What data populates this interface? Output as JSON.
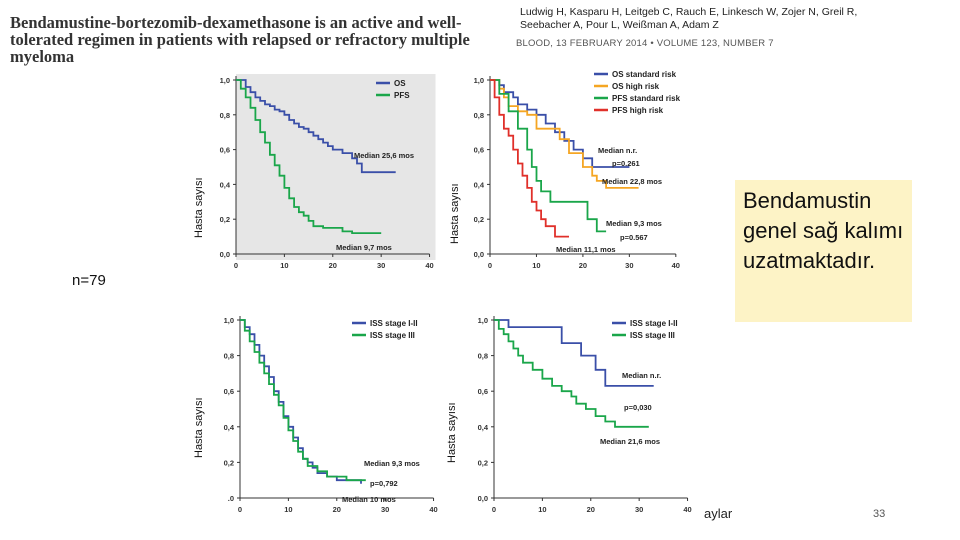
{
  "header": {
    "title": "Bendamustine-bortezomib-dexamethasone is an active and well-tolerated regimen in patients with relapsed or refractory multiple myeloma",
    "authors": "Ludwig H, Kasparu H, Leitgeb C, Rauch E, Linkesch W, Zojer N, Greil R, Seebacher A, Pour L, Weißman A, Adam Z",
    "journal": "BLOOD, 13 FEBRUARY 2014 • VOLUME 123, NUMBER 7"
  },
  "note": "Bendamustin genel sağ kalımı uzatmaktadır.",
  "n_label": "n=79",
  "x_unit_label": "aylar",
  "page_number": "33",
  "y_axis_label": "Hasta sayısı",
  "colors": {
    "blue": "#3a4fa8",
    "green": "#1aa64a",
    "orange": "#f5a623",
    "red": "#e0302a",
    "grey_bg": "#e6e6e6"
  },
  "chart_data": [
    {
      "type": "line",
      "id": "overall",
      "title": "",
      "ylabel": "Hasta sayısı",
      "xlim": [
        0,
        40
      ],
      "ylim": [
        0,
        1.0
      ],
      "x_ticks": [
        "0",
        "10",
        "20",
        "30",
        "40"
      ],
      "y_ticks": [
        "0,0",
        "0,2",
        "0,4",
        "0,6",
        "0,8",
        "1,0"
      ],
      "grey_background": true,
      "series": [
        {
          "name": "OS",
          "color": "blue",
          "points": [
            [
              0,
              1.0
            ],
            [
              1.5,
              1.0
            ],
            [
              2,
              0.96
            ],
            [
              3,
              0.93
            ],
            [
              4,
              0.9
            ],
            [
              5,
              0.88
            ],
            [
              6,
              0.86
            ],
            [
              7,
              0.85
            ],
            [
              8,
              0.83
            ],
            [
              9,
              0.82
            ],
            [
              10,
              0.8
            ],
            [
              11,
              0.77
            ],
            [
              12,
              0.75
            ],
            [
              13,
              0.73
            ],
            [
              14,
              0.72
            ],
            [
              15,
              0.7
            ],
            [
              16,
              0.68
            ],
            [
              17,
              0.66
            ],
            [
              18,
              0.64
            ],
            [
              19,
              0.62
            ],
            [
              20,
              0.6
            ],
            [
              22,
              0.58
            ],
            [
              24,
              0.55
            ],
            [
              25,
              0.52
            ],
            [
              26,
              0.47
            ],
            [
              33,
              0.47
            ]
          ]
        },
        {
          "name": "PFS",
          "color": "green",
          "points": [
            [
              0,
              1.0
            ],
            [
              1,
              0.95
            ],
            [
              2,
              0.9
            ],
            [
              3,
              0.84
            ],
            [
              4,
              0.77
            ],
            [
              5,
              0.7
            ],
            [
              6,
              0.64
            ],
            [
              7,
              0.57
            ],
            [
              8,
              0.51
            ],
            [
              9,
              0.45
            ],
            [
              10,
              0.38
            ],
            [
              11,
              0.32
            ],
            [
              12,
              0.27
            ],
            [
              13,
              0.24
            ],
            [
              14,
              0.22
            ],
            [
              15,
              0.19
            ],
            [
              16,
              0.16
            ],
            [
              18,
              0.15
            ],
            [
              20,
              0.15
            ],
            [
              22,
              0.13
            ],
            [
              24,
              0.12
            ],
            [
              30,
              0.12
            ]
          ]
        }
      ],
      "annotations": [
        "Median 25,6 mos",
        "Median 9,7 mos"
      ],
      "legend_position": "top-right"
    },
    {
      "type": "line",
      "id": "cytogenetic-risk",
      "xlim": [
        0,
        40
      ],
      "ylim": [
        0,
        1.0
      ],
      "x_ticks": [
        "0",
        "10",
        "20",
        "30",
        "40"
      ],
      "y_ticks": [
        "0,0",
        "0,2",
        "0,4",
        "0,6",
        "0,8",
        "1,0"
      ],
      "ylabel": "Hasta sayısı",
      "series": [
        {
          "name": "OS standard risk",
          "color": "blue",
          "points": [
            [
              0,
              1.0
            ],
            [
              2,
              0.97
            ],
            [
              3,
              0.93
            ],
            [
              5,
              0.9
            ],
            [
              6,
              0.86
            ],
            [
              8,
              0.83
            ],
            [
              10,
              0.8
            ],
            [
              12,
              0.75
            ],
            [
              14,
              0.7
            ],
            [
              16,
              0.65
            ],
            [
              18,
              0.6
            ],
            [
              20,
              0.55
            ],
            [
              22,
              0.5
            ],
            [
              30,
              0.5
            ]
          ]
        },
        {
          "name": "OS high risk",
          "color": "orange",
          "points": [
            [
              0,
              1.0
            ],
            [
              2,
              0.95
            ],
            [
              3,
              0.9
            ],
            [
              4,
              0.85
            ],
            [
              6,
              0.82
            ],
            [
              8,
              0.8
            ],
            [
              10,
              0.72
            ],
            [
              14,
              0.72
            ],
            [
              15,
              0.66
            ],
            [
              17,
              0.58
            ],
            [
              20,
              0.5
            ],
            [
              22,
              0.45
            ],
            [
              23,
              0.42
            ],
            [
              25,
              0.38
            ],
            [
              32,
              0.38
            ]
          ]
        },
        {
          "name": "PFS standard risk",
          "color": "green",
          "points": [
            [
              0,
              1.0
            ],
            [
              2,
              0.92
            ],
            [
              4,
              0.82
            ],
            [
              6,
              0.72
            ],
            [
              8,
              0.6
            ],
            [
              9,
              0.5
            ],
            [
              10,
              0.42
            ],
            [
              11,
              0.36
            ],
            [
              13,
              0.3
            ],
            [
              20,
              0.3
            ],
            [
              21,
              0.2
            ],
            [
              23,
              0.13
            ],
            [
              25,
              0.13
            ]
          ]
        },
        {
          "name": "PFS high risk",
          "color": "red",
          "points": [
            [
              0,
              1.0
            ],
            [
              1,
              0.9
            ],
            [
              2,
              0.8
            ],
            [
              3,
              0.72
            ],
            [
              4,
              0.68
            ],
            [
              5,
              0.6
            ],
            [
              6,
              0.52
            ],
            [
              7,
              0.45
            ],
            [
              8,
              0.38
            ],
            [
              9,
              0.3
            ],
            [
              10,
              0.25
            ],
            [
              11,
              0.2
            ],
            [
              12,
              0.16
            ],
            [
              13,
              0.16
            ],
            [
              14,
              0.1
            ],
            [
              17,
              0.1
            ]
          ]
        }
      ],
      "annotations": [
        "Median n.r.",
        "p=0.261",
        "Median 22,8 mos",
        "Median 9,3 mos",
        "p=0.567",
        "Median 11,1 mos"
      ],
      "legend_position": "top-right"
    },
    {
      "type": "line",
      "id": "iss-pfs",
      "xlim": [
        0,
        40
      ],
      "ylim": [
        0,
        1.0
      ],
      "x_ticks": [
        "0",
        "10",
        "20",
        "30",
        "40"
      ],
      "y_ticks": [
        ".0",
        "0,2",
        "0,4",
        "0,6",
        "0,8",
        "1,0"
      ],
      "ylabel": "Hasta sayısı",
      "series": [
        {
          "name": "ISS stage I-II",
          "color": "blue",
          "points": [
            [
              0,
              1.0
            ],
            [
              1,
              0.96
            ],
            [
              2,
              0.92
            ],
            [
              3,
              0.86
            ],
            [
              4,
              0.8
            ],
            [
              5,
              0.74
            ],
            [
              6,
              0.68
            ],
            [
              7,
              0.6
            ],
            [
              8,
              0.54
            ],
            [
              9,
              0.46
            ],
            [
              10,
              0.4
            ],
            [
              11,
              0.34
            ],
            [
              12,
              0.28
            ],
            [
              13,
              0.22
            ],
            [
              14,
              0.2
            ],
            [
              15,
              0.17
            ],
            [
              16,
              0.14
            ],
            [
              18,
              0.12
            ],
            [
              20,
              0.1
            ],
            [
              22,
              0.1
            ],
            [
              25,
              0.08
            ]
          ]
        },
        {
          "name": "ISS stage III",
          "color": "green",
          "points": [
            [
              0,
              1.0
            ],
            [
              1,
              0.94
            ],
            [
              2,
              0.88
            ],
            [
              3,
              0.82
            ],
            [
              4,
              0.76
            ],
            [
              5,
              0.7
            ],
            [
              6,
              0.64
            ],
            [
              7,
              0.58
            ],
            [
              8,
              0.52
            ],
            [
              9,
              0.45
            ],
            [
              10,
              0.38
            ],
            [
              11,
              0.32
            ],
            [
              12,
              0.26
            ],
            [
              13,
              0.22
            ],
            [
              14,
              0.18
            ],
            [
              16,
              0.15
            ],
            [
              18,
              0.12
            ],
            [
              20,
              0.12
            ],
            [
              22,
              0.1
            ],
            [
              26,
              0.1
            ]
          ]
        }
      ],
      "annotations": [
        "Median 9,3 mos",
        "p=0,792",
        "Median 10 mos"
      ],
      "legend_position": "top-right"
    },
    {
      "type": "line",
      "id": "iss-os",
      "xlim": [
        0,
        40
      ],
      "ylim": [
        0,
        1.0
      ],
      "x_ticks": [
        "0",
        "10",
        "20",
        "30",
        "40"
      ],
      "y_ticks": [
        "0,0",
        "0,2",
        "0,4",
        "0,6",
        "0,8",
        "1,0"
      ],
      "ylabel": "Hasta sayısı",
      "series": [
        {
          "name": "ISS stage I-II",
          "color": "blue",
          "points": [
            [
              0,
              1.0
            ],
            [
              3,
              0.96
            ],
            [
              5,
              0.96
            ],
            [
              10,
              0.96
            ],
            [
              13,
              0.96
            ],
            [
              14,
              0.87
            ],
            [
              17,
              0.87
            ],
            [
              18,
              0.8
            ],
            [
              20,
              0.8
            ],
            [
              21,
              0.72
            ],
            [
              22,
              0.72
            ],
            [
              23,
              0.63
            ],
            [
              33,
              0.63
            ]
          ]
        },
        {
          "name": "ISS stage III",
          "color": "green",
          "points": [
            [
              0,
              1.0
            ],
            [
              1,
              0.95
            ],
            [
              2,
              0.92
            ],
            [
              3,
              0.88
            ],
            [
              4,
              0.84
            ],
            [
              5,
              0.8
            ],
            [
              6,
              0.76
            ],
            [
              8,
              0.72
            ],
            [
              10,
              0.67
            ],
            [
              12,
              0.63
            ],
            [
              14,
              0.6
            ],
            [
              16,
              0.57
            ],
            [
              17,
              0.53
            ],
            [
              19,
              0.5
            ],
            [
              21,
              0.46
            ],
            [
              23,
              0.43
            ],
            [
              25,
              0.4
            ],
            [
              32,
              0.4
            ]
          ]
        }
      ],
      "annotations": [
        "Median n.r.",
        "p=0,030",
        "Median 21,6 mos"
      ],
      "legend_position": "top-right"
    }
  ]
}
